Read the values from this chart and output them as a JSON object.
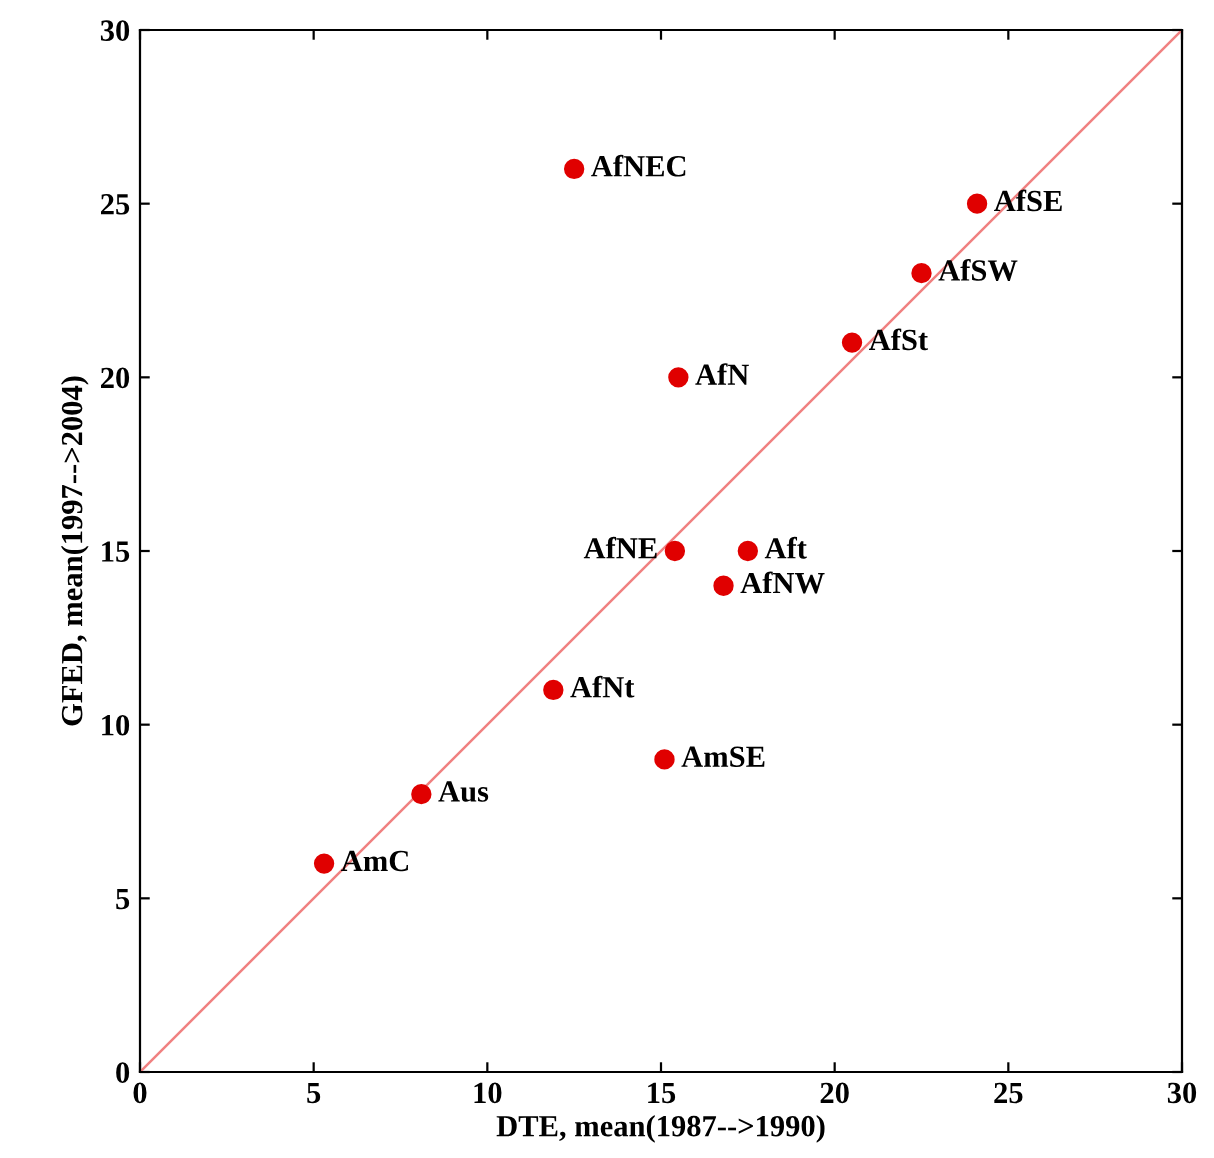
{
  "chart_data": {
    "type": "scatter",
    "xlabel": "DTE, mean(1987-->1990)",
    "ylabel": "GFED, mean(1997-->2004)",
    "xlim": [
      0,
      30
    ],
    "ylim": [
      0,
      30
    ],
    "xticks": [
      0,
      5,
      10,
      15,
      20,
      25,
      30
    ],
    "yticks": [
      0,
      5,
      10,
      15,
      20,
      25,
      30
    ],
    "grid": false,
    "legend": false,
    "series": [
      {
        "type": "line",
        "color": "#f08080",
        "x": [
          0,
          30
        ],
        "values": [
          0,
          30
        ]
      },
      {
        "color": "#e00000",
        "marker": "circle",
        "x": [
          12.5,
          24.1,
          22.5,
          20.5,
          15.5,
          15.4,
          17.5,
          16.8,
          11.9,
          15.1,
          8.1,
          5.3
        ],
        "values": [
          26,
          25,
          23,
          21,
          20,
          15,
          15,
          14,
          11,
          9,
          8,
          6
        ]
      }
    ],
    "annotations": [
      {
        "text": "AfNEC",
        "x": 12.5,
        "y": 26
      },
      {
        "text": "AfSE",
        "x": 24.1,
        "y": 25
      },
      {
        "text": "AfSW",
        "x": 22.5,
        "y": 23
      },
      {
        "text": "AfSt",
        "x": 20.5,
        "y": 21
      },
      {
        "text": "AfN",
        "x": 15.5,
        "y": 20
      },
      {
        "text": "AfNE",
        "x": 15.4,
        "y": 15
      },
      {
        "text": "Aft",
        "x": 17.5,
        "y": 15
      },
      {
        "text": "AfNW",
        "x": 16.8,
        "y": 14
      },
      {
        "text": "AfNt",
        "x": 11.9,
        "y": 11
      },
      {
        "text": "AmSE",
        "x": 15.1,
        "y": 9
      },
      {
        "text": "Aus",
        "x": 8.1,
        "y": 8
      },
      {
        "text": "AmC",
        "x": 5.3,
        "y": 6
      }
    ]
  }
}
